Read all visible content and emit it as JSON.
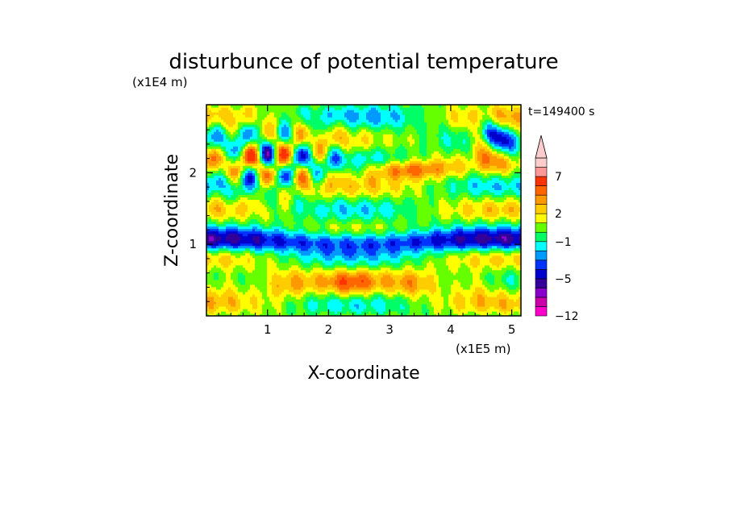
{
  "chart_data": {
    "type": "heatmap",
    "title": "disturbunce of potential temperature",
    "xlabel": "X-coordinate",
    "ylabel": "Z-coordinate",
    "x_unit": "(x1E5 m)",
    "y_unit": "(x1E4 m)",
    "time_label": "t=149400 s",
    "xlim": [
      0,
      5.15
    ],
    "ylim": [
      0,
      2.95
    ],
    "x_ticks": [
      1,
      2,
      3,
      4,
      5
    ],
    "y_ticks": [
      1,
      2
    ],
    "x_tick_labels": [
      "1",
      "2",
      "3",
      "4",
      "5"
    ],
    "y_tick_labels": [
      "1",
      "2"
    ],
    "colorbar": {
      "levels": [
        -12,
        -10,
        -8,
        -6,
        -5,
        -4,
        -3,
        -2,
        -1,
        0,
        1,
        2,
        3,
        4,
        5,
        7,
        9,
        11
      ],
      "colors": [
        "#ff00cc",
        "#cc00aa",
        "#8800cc",
        "#330099",
        "#0000cc",
        "#0033ff",
        "#0099ff",
        "#00ffff",
        "#00ff66",
        "#66ff00",
        "#ffff00",
        "#ffcc00",
        "#ff9900",
        "#ff6600",
        "#ff3300",
        "#ff9999",
        "#ffcccc"
      ],
      "labels": [
        "7",
        "2",
        "−1",
        "−5",
        "−12"
      ],
      "label_values": [
        7,
        2,
        -1,
        -5,
        -12
      ],
      "extend": "max"
    }
  }
}
